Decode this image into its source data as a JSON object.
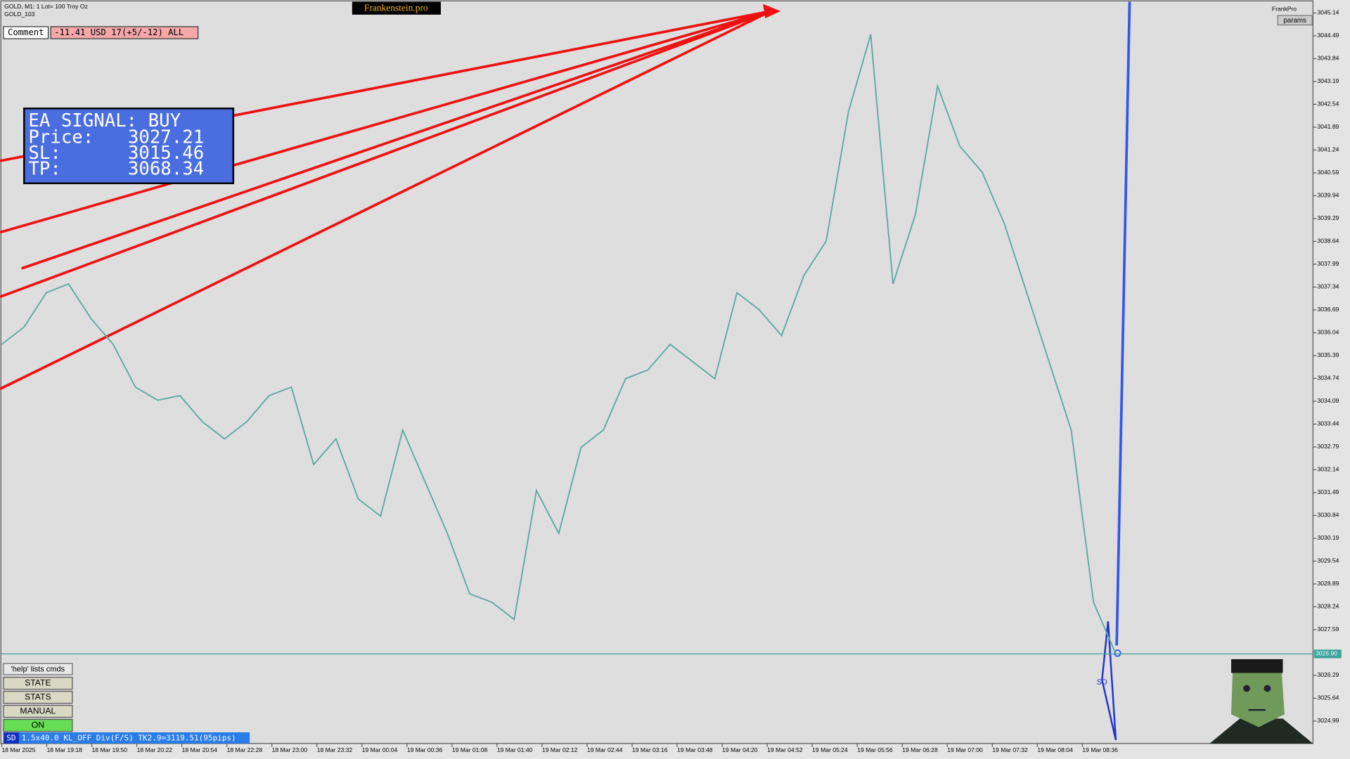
{
  "header": {
    "symbol": "GOLD, M1:  1 Lot= 100 Troy Oz",
    "account": "GOLD_103",
    "brand": "Frankenstein.pro",
    "provider": "FrankPro",
    "params": "params"
  },
  "comment": {
    "label": "Comment",
    "text": "-11.41 USD 17(+5/-12) ALL"
  },
  "signal": {
    "title": "EA SIGNAL: BUY",
    "rows": [
      [
        "Price:",
        "3027.21"
      ],
      [
        "SL:",
        "3015.46"
      ],
      [
        "TP:",
        "3068.34"
      ]
    ]
  },
  "buttons": {
    "help": "'help' lists cmds",
    "items": [
      "STATE",
      "STATS",
      "MANUAL",
      "ON"
    ]
  },
  "status_bar": {
    "tag": "SD",
    "text": "1.5x40.0 KL_OFF Div(F/S) TK2.9=3119.51(95pips)"
  },
  "marker": "SD",
  "chart_data": {
    "type": "line",
    "color": "#5aa8a0",
    "values": [
      3035.71,
      3036.2,
      3037.18,
      3037.43,
      3036.45,
      3035.71,
      3034.49,
      3034.12,
      3034.25,
      3033.51,
      3033.02,
      3033.51,
      3034.25,
      3034.49,
      3032.29,
      3033.02,
      3031.31,
      3030.82,
      3033.27,
      3031.8,
      3030.33,
      3028.61,
      3028.37,
      3027.88,
      3031.55,
      3030.33,
      3032.78,
      3033.27,
      3034.73,
      3034.98,
      3035.71,
      3035.22,
      3034.73,
      3037.18,
      3036.69,
      3035.96,
      3037.67,
      3038.65,
      3042.32,
      3044.53,
      3037.43,
      3039.39,
      3043.06,
      3041.35,
      3040.61,
      3039.14,
      3037.18,
      3035.22,
      3033.27,
      3028.37,
      3026.9
    ],
    "ylim": [
      3024.35,
      3045.46
    ],
    "yticks": [
      3045.14,
      3044.49,
      3043.84,
      3043.19,
      3042.54,
      3041.89,
      3041.24,
      3040.59,
      3039.94,
      3039.29,
      3038.64,
      3037.99,
      3037.34,
      3036.69,
      3036.04,
      3035.39,
      3034.74,
      3034.09,
      3033.44,
      3032.79,
      3032.14,
      3031.49,
      3030.84,
      3030.19,
      3029.54,
      3028.89,
      3028.24,
      3027.59,
      3026.29,
      3025.64,
      3024.99
    ],
    "current_price": {
      "value": 3026.9,
      "label": "3026.90"
    },
    "xtick_labels": [
      "18 Mar 2025",
      "18 Mar 19:18",
      "18 Mar 19:50",
      "18 Mar 20:22",
      "18 Mar 20:54",
      "18 Mar 22:28",
      "18 Mar 23:00",
      "18 Mar 23:32",
      "19 Mar 00:04",
      "19 Mar 00:36",
      "19 Mar 01:08",
      "19 Mar 01:40",
      "19 Mar 02:12",
      "19 Mar 02:44",
      "19 Mar 03:16",
      "19 Mar 03:48",
      "19 Mar 04:20",
      "19 Mar 04:52",
      "19 Mar 05:24",
      "19 Mar 05:56",
      "19 Mar 06:28",
      "19 Mar 07:00",
      "19 Mar 07:32",
      "19 Mar 08:04",
      "19 Mar 08:36"
    ]
  }
}
